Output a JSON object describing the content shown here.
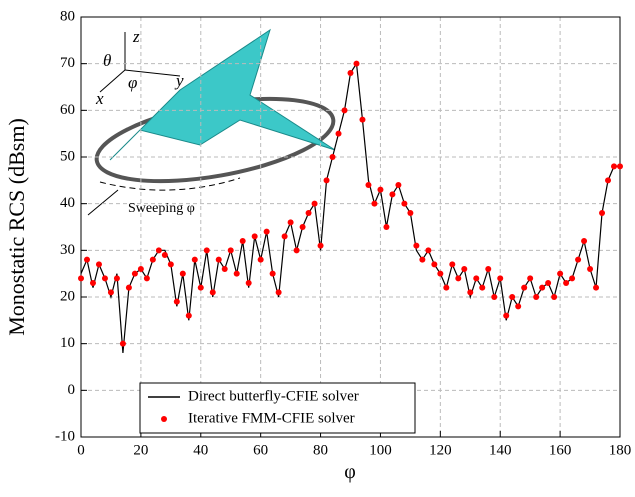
{
  "chart_data": {
    "type": "line-scatter",
    "xlabel": "φ",
    "ylabel": "Monostatic RCS (dBsm)",
    "xlim": [
      0,
      180
    ],
    "xticks": [
      0,
      20,
      40,
      60,
      80,
      100,
      120,
      140,
      160,
      180
    ],
    "ylim": [
      -10,
      80
    ],
    "yticks": [
      -10,
      0,
      10,
      20,
      30,
      40,
      50,
      60,
      70,
      80
    ],
    "grid": true,
    "legend": "lower left",
    "annotations": [
      "z",
      "θ",
      "φ",
      "y",
      "x",
      "Sweeping φ"
    ],
    "x": [
      0,
      2,
      4,
      6,
      8,
      10,
      12,
      14,
      16,
      18,
      20,
      22,
      24,
      26,
      28,
      30,
      32,
      34,
      36,
      38,
      40,
      42,
      44,
      46,
      48,
      50,
      52,
      54,
      56,
      58,
      60,
      62,
      64,
      66,
      68,
      70,
      72,
      74,
      76,
      78,
      80,
      82,
      84,
      86,
      88,
      90,
      92,
      94,
      96,
      98,
      100,
      102,
      104,
      106,
      108,
      110,
      112,
      114,
      116,
      118,
      120,
      122,
      124,
      126,
      128,
      130,
      132,
      134,
      136,
      138,
      140,
      142,
      144,
      146,
      148,
      150,
      152,
      154,
      156,
      158,
      160,
      162,
      164,
      166,
      168,
      170,
      172,
      174,
      176,
      178,
      180
    ],
    "series": [
      {
        "name": "Direct butterfly-CFIE solver",
        "color": "#000000",
        "style": "line",
        "values": [
          25,
          28,
          22,
          27,
          24,
          20,
          25,
          8,
          22,
          25,
          26,
          24,
          28,
          30,
          30,
          27,
          18,
          25,
          15,
          28,
          22,
          30,
          20,
          28,
          26,
          30,
          25,
          32,
          22,
          33,
          28,
          34,
          25,
          20,
          33,
          36,
          30,
          35,
          38,
          40,
          30,
          45,
          50,
          55,
          60,
          68,
          70,
          58,
          45,
          40,
          43,
          35,
          42,
          44,
          40,
          38,
          30,
          28,
          30,
          27,
          25,
          22,
          27,
          24,
          26,
          20,
          24,
          22,
          26,
          20,
          24,
          15,
          20,
          18,
          22,
          24,
          20,
          22,
          23,
          20,
          25,
          23,
          24,
          28,
          32,
          26,
          22,
          38,
          45,
          48,
          48
        ]
      },
      {
        "name": "Iterative FMM-CFIE solver",
        "color": "#ff0000",
        "style": "scatter",
        "values": [
          24,
          28,
          23,
          27,
          24,
          21,
          24,
          10,
          22,
          25,
          26,
          24,
          28,
          30,
          29,
          27,
          19,
          25,
          16,
          28,
          22,
          30,
          21,
          28,
          26,
          30,
          25,
          32,
          23,
          33,
          28,
          34,
          25,
          21,
          33,
          36,
          30,
          35,
          38,
          40,
          31,
          45,
          50,
          55,
          60,
          68,
          70,
          58,
          44,
          40,
          43,
          35,
          42,
          44,
          40,
          38,
          31,
          28,
          30,
          27,
          25,
          22,
          27,
          24,
          26,
          21,
          24,
          22,
          26,
          20,
          24,
          16,
          20,
          18,
          22,
          24,
          20,
          22,
          23,
          20,
          25,
          23,
          24,
          28,
          32,
          26,
          22,
          38,
          45,
          48,
          48
        ]
      }
    ]
  }
}
